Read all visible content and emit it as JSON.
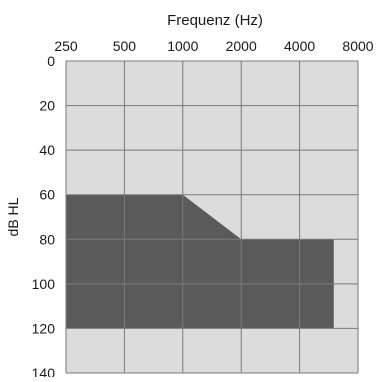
{
  "chart_data": {
    "type": "area",
    "title": "Frequenz (Hz)",
    "xlabel": "Frequenz (Hz)",
    "ylabel": "dB HL",
    "x_ticks": [
      "250",
      "500",
      "1000",
      "2000",
      "4000",
      "8000"
    ],
    "x_tick_values": [
      250,
      500,
      1000,
      2000,
      4000,
      8000
    ],
    "x_scale": "log2",
    "y_ticks": [
      "0",
      "20",
      "40",
      "60",
      "80",
      "100",
      "120",
      "140"
    ],
    "y_tick_values": [
      0,
      20,
      40,
      60,
      80,
      100,
      120,
      140
    ],
    "ylim": [
      0,
      140
    ],
    "y_inverted": true,
    "grid": true,
    "region": {
      "upper_boundary": [
        {
          "x": 250,
          "y": 60
        },
        {
          "x": 1000,
          "y": 60
        },
        {
          "x": 2000,
          "y": 80
        },
        {
          "x": 6000,
          "y": 80
        }
      ],
      "lower_boundary_y": 120,
      "x_range": [
        250,
        6000
      ]
    },
    "colors": {
      "background": "#dcdcdc",
      "region_fill": "#5a5a5a",
      "grid": "#7a7a7a",
      "axis": "#7a7a7a"
    }
  }
}
